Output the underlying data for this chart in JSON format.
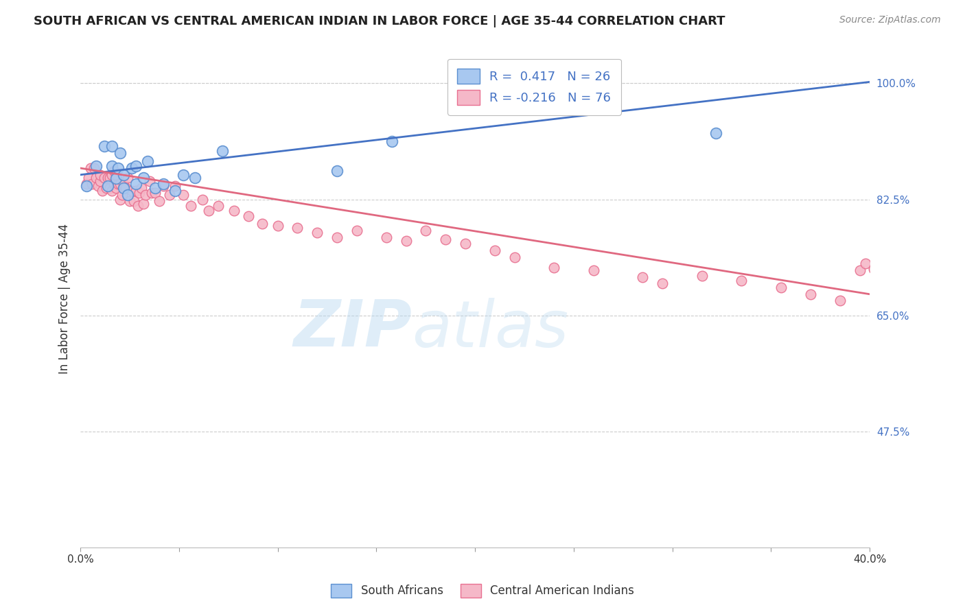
{
  "title": "SOUTH AFRICAN VS CENTRAL AMERICAN INDIAN IN LABOR FORCE | AGE 35-44 CORRELATION CHART",
  "source": "Source: ZipAtlas.com",
  "ylabel": "In Labor Force | Age 35-44",
  "x_min": 0.0,
  "x_max": 0.4,
  "y_min": 0.3,
  "y_max": 1.05,
  "y_tick_labels_right": [
    "100.0%",
    "82.5%",
    "65.0%",
    "47.5%"
  ],
  "y_tick_positions_right": [
    1.0,
    0.825,
    0.65,
    0.475
  ],
  "blue_color": "#A8C8F0",
  "pink_color": "#F5B8C8",
  "blue_edge_color": "#5B8FD0",
  "pink_edge_color": "#E87090",
  "blue_line_color": "#4472C4",
  "pink_line_color": "#E06880",
  "legend_r_blue": " 0.417",
  "legend_n_blue": "26",
  "legend_r_pink": "-0.216",
  "legend_n_pink": "76",
  "background_color": "#ffffff",
  "grid_color": "#cccccc",
  "south_africans_x": [
    0.003,
    0.008,
    0.012,
    0.014,
    0.016,
    0.016,
    0.018,
    0.019,
    0.02,
    0.022,
    0.022,
    0.024,
    0.026,
    0.028,
    0.028,
    0.032,
    0.034,
    0.038,
    0.042,
    0.048,
    0.052,
    0.058,
    0.072,
    0.13,
    0.158,
    0.322
  ],
  "south_africans_y": [
    0.845,
    0.875,
    0.905,
    0.845,
    0.875,
    0.905,
    0.857,
    0.872,
    0.895,
    0.842,
    0.862,
    0.832,
    0.872,
    0.848,
    0.875,
    0.858,
    0.882,
    0.842,
    0.848,
    0.838,
    0.862,
    0.858,
    0.898,
    0.868,
    0.912,
    0.925
  ],
  "central_american_x": [
    0.003,
    0.004,
    0.005,
    0.006,
    0.007,
    0.008,
    0.009,
    0.01,
    0.01,
    0.011,
    0.012,
    0.013,
    0.014,
    0.015,
    0.015,
    0.016,
    0.016,
    0.017,
    0.017,
    0.018,
    0.018,
    0.019,
    0.02,
    0.02,
    0.021,
    0.022,
    0.023,
    0.024,
    0.025,
    0.026,
    0.027,
    0.028,
    0.029,
    0.03,
    0.031,
    0.032,
    0.033,
    0.035,
    0.036,
    0.038,
    0.04,
    0.042,
    0.045,
    0.048,
    0.052,
    0.056,
    0.062,
    0.065,
    0.07,
    0.078,
    0.085,
    0.092,
    0.1,
    0.11,
    0.12,
    0.13,
    0.14,
    0.155,
    0.165,
    0.175,
    0.185,
    0.195,
    0.21,
    0.22,
    0.24,
    0.26,
    0.285,
    0.295,
    0.315,
    0.335,
    0.355,
    0.37,
    0.385,
    0.395,
    0.398,
    0.402
  ],
  "central_american_y": [
    0.848,
    0.858,
    0.872,
    0.848,
    0.872,
    0.858,
    0.845,
    0.852,
    0.862,
    0.838,
    0.858,
    0.842,
    0.858,
    0.842,
    0.858,
    0.838,
    0.862,
    0.848,
    0.868,
    0.842,
    0.862,
    0.848,
    0.825,
    0.848,
    0.832,
    0.848,
    0.842,
    0.858,
    0.822,
    0.838,
    0.822,
    0.838,
    0.815,
    0.835,
    0.842,
    0.818,
    0.832,
    0.852,
    0.835,
    0.835,
    0.822,
    0.845,
    0.832,
    0.845,
    0.832,
    0.815,
    0.825,
    0.808,
    0.815,
    0.808,
    0.8,
    0.788,
    0.785,
    0.782,
    0.775,
    0.768,
    0.778,
    0.768,
    0.762,
    0.778,
    0.765,
    0.758,
    0.748,
    0.738,
    0.722,
    0.718,
    0.708,
    0.698,
    0.71,
    0.702,
    0.692,
    0.682,
    0.672,
    0.718,
    0.728,
    0.72
  ],
  "blue_trend_x": [
    0.0,
    0.4
  ],
  "blue_trend_y": [
    0.862,
    1.002
  ],
  "pink_trend_x": [
    0.0,
    0.4
  ],
  "pink_trend_y": [
    0.872,
    0.682
  ]
}
